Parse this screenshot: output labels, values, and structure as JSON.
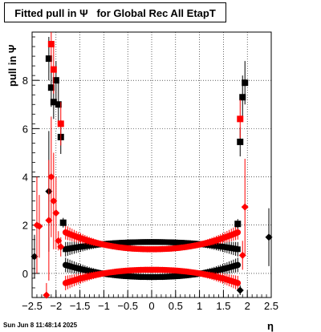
{
  "title": "Fitted pull in Ψ   for Global Rec All EtapT",
  "timestamp": "Sun Jun  8 11:48:14 2025",
  "chart_data": {
    "type": "scatter",
    "title": "Fitted pull in Ψ   for Global Rec All EtapT",
    "xlabel": "η",
    "ylabel": "pull in Ψ",
    "xlim": [
      -2.5,
      2.5
    ],
    "ylim": [
      -1.0,
      10.0
    ],
    "grid": true,
    "x_ticks": [
      -2.5,
      -2,
      -1.5,
      -1,
      -0.5,
      0,
      0.5,
      1,
      1.5,
      2,
      2.5
    ],
    "x_tick_labels": [
      "−2.5",
      "−2",
      "−1.5",
      "−1",
      "−0.5",
      "0",
      "0.5",
      "1",
      "1.5",
      "2",
      "2.5"
    ],
    "y_ticks": [
      0,
      2,
      4,
      6,
      8
    ],
    "y_tick_labels": [
      "0",
      "2",
      "4",
      "6",
      "8"
    ],
    "series": [
      {
        "color": "#000000",
        "marker": "square",
        "points": [
          {
            "x": -2.15,
            "y": 8.9,
            "err": 0.9
          },
          {
            "x": -2.1,
            "y": 7.7,
            "err": 0.8
          },
          {
            "x": -2.05,
            "y": 7.1,
            "err": 0.7
          },
          {
            "x": -2.0,
            "y": 8.0,
            "err": 0.8
          },
          {
            "x": -1.95,
            "y": 7.0,
            "err": 0.9
          },
          {
            "x": -1.9,
            "y": 5.65,
            "err": 0.7
          },
          {
            "x": -1.85,
            "y": 2.1,
            "err": 0.2
          },
          {
            "x": 1.8,
            "y": 2.05,
            "err": 0.2
          },
          {
            "x": 1.85,
            "y": 5.45,
            "err": 0.6
          },
          {
            "x": 1.9,
            "y": 7.3,
            "err": 0.9
          },
          {
            "x": 1.95,
            "y": 7.9,
            "err": 0.9
          }
        ]
      },
      {
        "color": "#000000",
        "marker": "circle",
        "points": [
          {
            "x": -2.45,
            "y": 0.7,
            "err": 0.9
          },
          {
            "x": -2.15,
            "y": 3.4,
            "err": 2.5
          },
          {
            "x": 1.85,
            "y": -0.7,
            "err": 0.2
          },
          {
            "x": 2.45,
            "y": 1.5,
            "err": 1.2
          }
        ]
      },
      {
        "color": "#ff0000",
        "marker": "square",
        "points": [
          {
            "x": -2.1,
            "y": 9.5,
            "err": 1.0
          },
          {
            "x": -2.05,
            "y": 8.45,
            "err": 1.0
          },
          {
            "x": -1.9,
            "y": 6.2,
            "err": 0.9
          },
          {
            "x": 1.85,
            "y": 6.4,
            "err": 0.8
          }
        ]
      },
      {
        "color": "#ff0000",
        "marker": "circle",
        "points": [
          {
            "x": -2.4,
            "y": 2.0,
            "err": 2.0
          },
          {
            "x": -2.35,
            "y": 1.95,
            "err": 1.3
          },
          {
            "x": -2.2,
            "y": -0.9,
            "err": 0.5
          },
          {
            "x": -2.15,
            "y": 2.2,
            "err": 2.5
          },
          {
            "x": -2.1,
            "y": 4.0,
            "err": 2.5
          },
          {
            "x": -2.05,
            "y": 3.0,
            "err": 2.0
          },
          {
            "x": -2.0,
            "y": 2.5,
            "err": 1.5
          },
          {
            "x": -1.95,
            "y": 1.35,
            "err": 0.4
          },
          {
            "x": -1.9,
            "y": 1.1,
            "err": 0.4
          },
          {
            "x": 1.9,
            "y": 0.75,
            "err": 0.6
          },
          {
            "x": 1.95,
            "y": 2.75,
            "err": 2.0
          }
        ]
      }
    ],
    "bands": [
      {
        "color": "#000000",
        "shape": "upper",
        "x": [
          -1.8,
          1.8
        ],
        "edge": 1.0,
        "center": 1.3
      },
      {
        "color": "#000000",
        "shape": "lower",
        "x": [
          -1.8,
          1.8
        ],
        "edge": 0.35,
        "center": -0.15
      },
      {
        "color": "#ff0000",
        "shape": "upper",
        "x": [
          -1.8,
          1.8
        ],
        "edge": 1.7,
        "center": 1.0
      },
      {
        "color": "#ff0000",
        "shape": "lower",
        "x": [
          -1.8,
          1.8
        ],
        "edge": -0.4,
        "center": 0.15
      }
    ]
  }
}
